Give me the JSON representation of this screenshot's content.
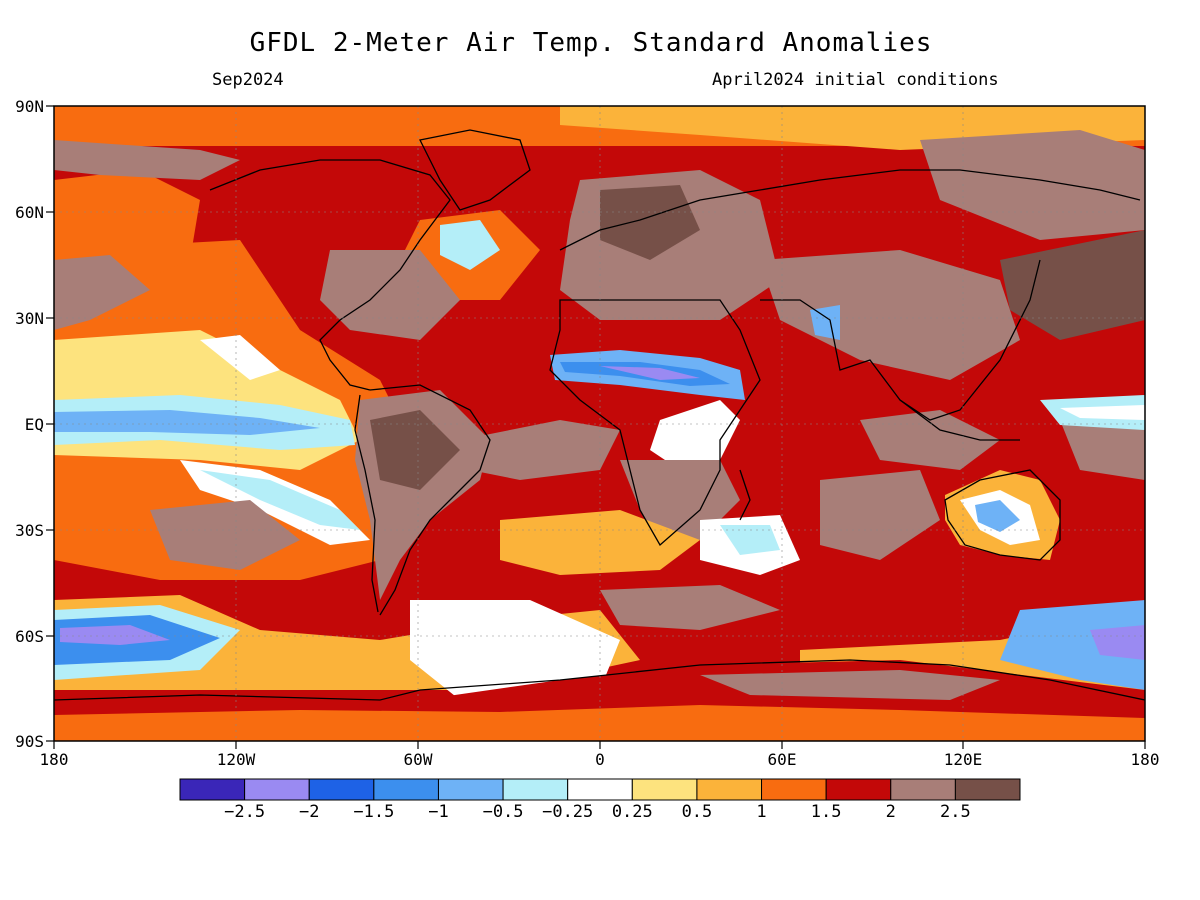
{
  "header": {
    "title": "GFDL 2-Meter Air Temp. Standard Anomalies",
    "valid_month": "Sep2024",
    "init_conditions": "April2024 initial conditions"
  },
  "map": {
    "lat_labels": [
      "90N",
      "60N",
      "30N",
      "EQ",
      "30S",
      "60S",
      "90S"
    ],
    "lon_labels": [
      "180",
      "120W",
      "60W",
      "0",
      "60E",
      "120E",
      "180"
    ]
  },
  "colorbar": {
    "colors": [
      "#3a26b8",
      "#9a8af2",
      "#1e62e6",
      "#3c8fee",
      "#6eb2f6",
      "#b4eef8",
      "#ffffff",
      "#fde37e",
      "#fbb33a",
      "#f86c10",
      "#c30808",
      "#a87e78",
      "#765048"
    ],
    "labels": [
      "−2.5",
      "−2",
      "−1.5",
      "−1",
      "−0.5",
      "−0.25",
      "0.25",
      "0.5",
      "1",
      "1.5",
      "2",
      "2.5"
    ]
  }
}
